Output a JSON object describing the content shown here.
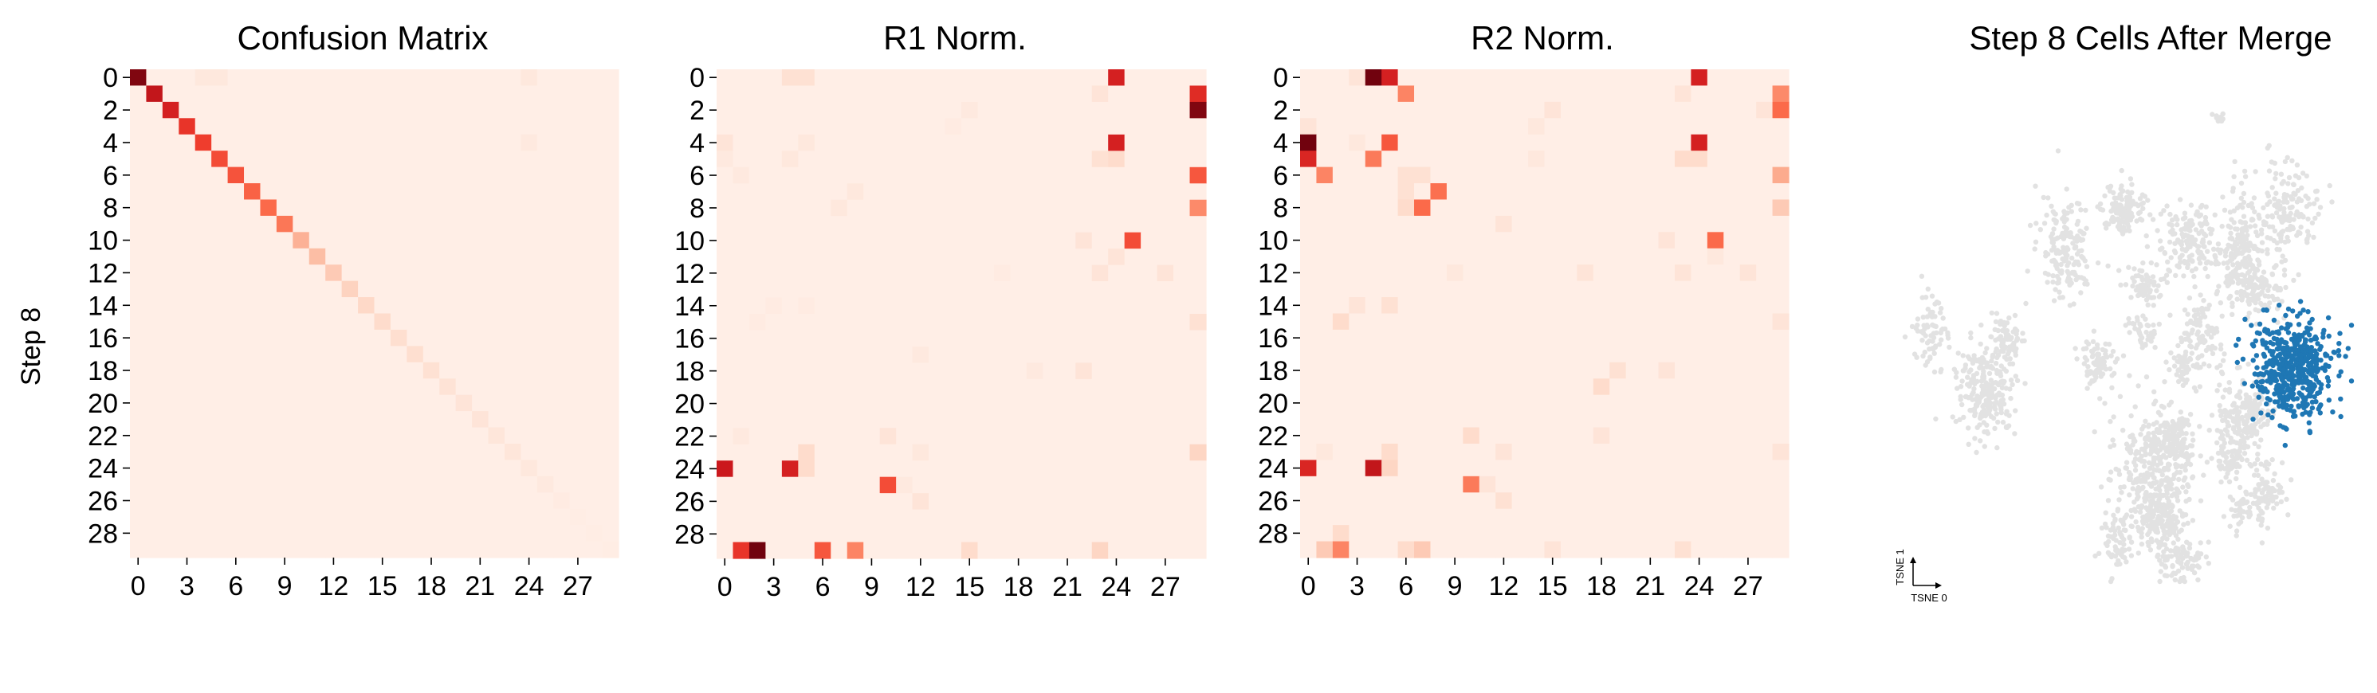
{
  "chart_data": [
    {
      "type": "heatmap",
      "title": "Confusion Matrix",
      "ylabel": "Step 8",
      "xlabel": "",
      "n": 30,
      "colormap": "Reds",
      "xticks": [
        "0",
        "3",
        "6",
        "9",
        "12",
        "15",
        "18",
        "21",
        "24",
        "27"
      ],
      "yticks": [
        "0",
        "2",
        "4",
        "6",
        "8",
        "10",
        "12",
        "14",
        "16",
        "18",
        "20",
        "22",
        "24",
        "26",
        "28"
      ],
      "background": 0.04,
      "diagonal": [
        0.95,
        0.78,
        0.72,
        0.65,
        0.62,
        0.58,
        0.56,
        0.52,
        0.5,
        0.46,
        0.28,
        0.24,
        0.2,
        0.17,
        0.15,
        0.14,
        0.13,
        0.13,
        0.12,
        0.11,
        0.1,
        0.1,
        0.09,
        0.09,
        0.08,
        0.07,
        0.06,
        0.05,
        0.05,
        0.05
      ],
      "cells": [
        [
          0,
          4,
          0.08
        ],
        [
          0,
          5,
          0.08
        ],
        [
          0,
          24,
          0.08
        ],
        [
          4,
          24,
          0.07
        ]
      ]
    },
    {
      "type": "heatmap",
      "title": "R1 Norm.",
      "xlabel": "",
      "ylabel": "",
      "n": 30,
      "colormap": "Reds",
      "xticks": [
        "0",
        "3",
        "6",
        "9",
        "12",
        "15",
        "18",
        "21",
        "24",
        "27"
      ],
      "yticks": [
        "0",
        "2",
        "4",
        "6",
        "8",
        "10",
        "12",
        "14",
        "16",
        "18",
        "20",
        "22",
        "24",
        "26",
        "28"
      ],
      "background": 0.04,
      "cells": [
        [
          0,
          4,
          0.12
        ],
        [
          0,
          5,
          0.12
        ],
        [
          0,
          24,
          0.72
        ],
        [
          1,
          23,
          0.1
        ],
        [
          1,
          29,
          0.68
        ],
        [
          2,
          29,
          0.95
        ],
        [
          2,
          15,
          0.07
        ],
        [
          3,
          14,
          0.06
        ],
        [
          4,
          0,
          0.1
        ],
        [
          4,
          5,
          0.08
        ],
        [
          4,
          24,
          0.72
        ],
        [
          5,
          0,
          0.07
        ],
        [
          5,
          4,
          0.08
        ],
        [
          5,
          23,
          0.12
        ],
        [
          5,
          24,
          0.14
        ],
        [
          6,
          1,
          0.07
        ],
        [
          6,
          29,
          0.55
        ],
        [
          7,
          8,
          0.08
        ],
        [
          8,
          7,
          0.08
        ],
        [
          8,
          29,
          0.4
        ],
        [
          10,
          22,
          0.1
        ],
        [
          10,
          25,
          0.58
        ],
        [
          11,
          24,
          0.1
        ],
        [
          12,
          17,
          0.06
        ],
        [
          12,
          23,
          0.1
        ],
        [
          12,
          27,
          0.1
        ],
        [
          14,
          3,
          0.06
        ],
        [
          14,
          5,
          0.06
        ],
        [
          15,
          2,
          0.06
        ],
        [
          15,
          29,
          0.12
        ],
        [
          17,
          12,
          0.07
        ],
        [
          18,
          19,
          0.07
        ],
        [
          18,
          22,
          0.1
        ],
        [
          22,
          10,
          0.1
        ],
        [
          22,
          1,
          0.07
        ],
        [
          23,
          12,
          0.08
        ],
        [
          23,
          5,
          0.14
        ],
        [
          23,
          29,
          0.16
        ],
        [
          24,
          0,
          0.75
        ],
        [
          24,
          4,
          0.72
        ],
        [
          24,
          5,
          0.14
        ],
        [
          25,
          10,
          0.58
        ],
        [
          25,
          11,
          0.07
        ],
        [
          26,
          12,
          0.1
        ],
        [
          29,
          1,
          0.65
        ],
        [
          29,
          2,
          0.98
        ],
        [
          29,
          6,
          0.55
        ],
        [
          29,
          8,
          0.42
        ],
        [
          29,
          15,
          0.14
        ],
        [
          29,
          23,
          0.16
        ]
      ]
    },
    {
      "type": "heatmap",
      "title": "R2 Norm.",
      "xlabel": "",
      "ylabel": "",
      "n": 30,
      "colormap": "Reds",
      "xticks": [
        "0",
        "3",
        "6",
        "9",
        "12",
        "15",
        "18",
        "21",
        "24",
        "27"
      ],
      "yticks": [
        "0",
        "2",
        "4",
        "6",
        "8",
        "10",
        "12",
        "14",
        "16",
        "18",
        "20",
        "22",
        "24",
        "26",
        "28"
      ],
      "background": 0.04,
      "cells": [
        [
          0,
          3,
          0.1
        ],
        [
          0,
          4,
          0.98
        ],
        [
          0,
          5,
          0.72
        ],
        [
          0,
          24,
          0.72
        ],
        [
          1,
          6,
          0.42
        ],
        [
          1,
          23,
          0.1
        ],
        [
          1,
          29,
          0.4
        ],
        [
          2,
          15,
          0.1
        ],
        [
          2,
          28,
          0.1
        ],
        [
          2,
          29,
          0.5
        ],
        [
          3,
          0,
          0.1
        ],
        [
          3,
          14,
          0.08
        ],
        [
          4,
          0,
          0.98
        ],
        [
          4,
          3,
          0.08
        ],
        [
          4,
          5,
          0.55
        ],
        [
          4,
          24,
          0.72
        ],
        [
          5,
          0,
          0.7
        ],
        [
          5,
          4,
          0.45
        ],
        [
          5,
          14,
          0.08
        ],
        [
          5,
          23,
          0.14
        ],
        [
          5,
          24,
          0.14
        ],
        [
          6,
          1,
          0.42
        ],
        [
          6,
          6,
          0.12
        ],
        [
          6,
          7,
          0.12
        ],
        [
          6,
          29,
          0.3
        ],
        [
          7,
          6,
          0.12
        ],
        [
          7,
          8,
          0.48
        ],
        [
          8,
          6,
          0.14
        ],
        [
          8,
          7,
          0.5
        ],
        [
          8,
          29,
          0.2
        ],
        [
          9,
          12,
          0.1
        ],
        [
          10,
          22,
          0.1
        ],
        [
          10,
          25,
          0.5
        ],
        [
          11,
          25,
          0.08
        ],
        [
          12,
          9,
          0.08
        ],
        [
          12,
          17,
          0.1
        ],
        [
          12,
          23,
          0.1
        ],
        [
          12,
          27,
          0.1
        ],
        [
          14,
          3,
          0.1
        ],
        [
          14,
          5,
          0.12
        ],
        [
          15,
          2,
          0.14
        ],
        [
          15,
          29,
          0.1
        ],
        [
          18,
          19,
          0.12
        ],
        [
          18,
          22,
          0.1
        ],
        [
          19,
          18,
          0.14
        ],
        [
          22,
          10,
          0.14
        ],
        [
          22,
          18,
          0.1
        ],
        [
          23,
          1,
          0.08
        ],
        [
          23,
          5,
          0.14
        ],
        [
          23,
          12,
          0.1
        ],
        [
          23,
          29,
          0.1
        ],
        [
          24,
          0,
          0.7
        ],
        [
          24,
          4,
          0.78
        ],
        [
          24,
          5,
          0.16
        ],
        [
          25,
          10,
          0.45
        ],
        [
          25,
          11,
          0.1
        ],
        [
          26,
          12,
          0.12
        ],
        [
          28,
          2,
          0.14
        ],
        [
          29,
          1,
          0.2
        ],
        [
          29,
          2,
          0.42
        ],
        [
          29,
          6,
          0.14
        ],
        [
          29,
          7,
          0.2
        ],
        [
          29,
          15,
          0.1
        ],
        [
          29,
          23,
          0.12
        ]
      ]
    },
    {
      "type": "scatter",
      "title": "Step 8 Cells After Merge",
      "xlabel": "TSNE 0",
      "ylabel": "TSNE 1",
      "colors": {
        "background_cells": "#e2e2e2",
        "highlighted_cells": "#1f77b4"
      },
      "grey_clusters": [
        {
          "cx": 0.18,
          "cy": 0.6,
          "sx": 0.032,
          "sy": 0.052,
          "count": 240
        },
        {
          "cx": 0.06,
          "cy": 0.48,
          "sx": 0.022,
          "sy": 0.035,
          "count": 70
        },
        {
          "cx": 0.23,
          "cy": 0.49,
          "sx": 0.018,
          "sy": 0.028,
          "count": 70
        },
        {
          "cx": 0.36,
          "cy": 0.3,
          "sx": 0.03,
          "sy": 0.05,
          "count": 170
        },
        {
          "cx": 0.49,
          "cy": 0.22,
          "sx": 0.025,
          "sy": 0.028,
          "count": 130
        },
        {
          "cx": 0.63,
          "cy": 0.29,
          "sx": 0.03,
          "sy": 0.04,
          "count": 150
        },
        {
          "cx": 0.75,
          "cy": 0.31,
          "sx": 0.025,
          "sy": 0.06,
          "count": 200
        },
        {
          "cx": 0.86,
          "cy": 0.22,
          "sx": 0.035,
          "sy": 0.045,
          "count": 150
        },
        {
          "cx": 0.7,
          "cy": 0.03,
          "sx": 0.006,
          "sy": 0.006,
          "count": 12
        },
        {
          "cx": 0.8,
          "cy": 0.38,
          "sx": 0.03,
          "sy": 0.03,
          "count": 100
        },
        {
          "cx": 0.43,
          "cy": 0.54,
          "sx": 0.02,
          "sy": 0.03,
          "count": 80
        },
        {
          "cx": 0.66,
          "cy": 0.49,
          "sx": 0.025,
          "sy": 0.04,
          "count": 100
        },
        {
          "cx": 0.53,
          "cy": 0.38,
          "sx": 0.02,
          "sy": 0.02,
          "count": 60
        },
        {
          "cx": 0.53,
          "cy": 0.47,
          "sx": 0.015,
          "sy": 0.02,
          "count": 40
        },
        {
          "cx": 0.62,
          "cy": 0.55,
          "sx": 0.015,
          "sy": 0.02,
          "count": 40
        },
        {
          "cx": 0.76,
          "cy": 0.66,
          "sx": 0.03,
          "sy": 0.045,
          "count": 190
        },
        {
          "cx": 0.81,
          "cy": 0.82,
          "sx": 0.02,
          "sy": 0.04,
          "count": 80
        },
        {
          "cx": 0.55,
          "cy": 0.78,
          "sx": 0.045,
          "sy": 0.07,
          "count": 340
        },
        {
          "cx": 0.6,
          "cy": 0.7,
          "sx": 0.025,
          "sy": 0.03,
          "count": 120
        },
        {
          "cx": 0.62,
          "cy": 0.96,
          "sx": 0.025,
          "sy": 0.025,
          "count": 80
        },
        {
          "cx": 0.58,
          "cy": 0.88,
          "sx": 0.025,
          "sy": 0.03,
          "count": 120
        },
        {
          "cx": 0.47,
          "cy": 0.92,
          "sx": 0.015,
          "sy": 0.03,
          "count": 60
        },
        {
          "cx": 0.75,
          "cy": 0.85,
          "sx": 0.015,
          "sy": 0.025,
          "count": 40
        },
        {
          "cx": 0.73,
          "cy": 0.75,
          "sx": 0.015,
          "sy": 0.02,
          "count": 50
        }
      ],
      "blue_clusters": [
        {
          "cx": 0.87,
          "cy": 0.55,
          "sx": 0.045,
          "sy": 0.05,
          "count": 520
        }
      ]
    }
  ]
}
